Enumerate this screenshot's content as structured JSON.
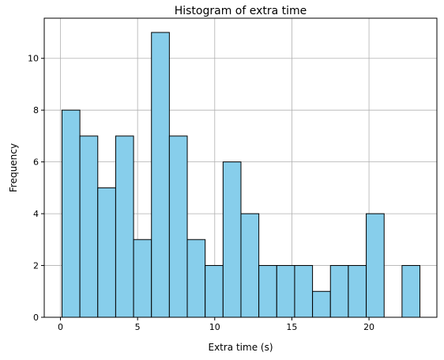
{
  "chart_data": {
    "type": "bar",
    "subtype": "histogram",
    "title": "Histogram of extra time",
    "xlabel": "Extra time (s)",
    "ylabel": "Frequency",
    "bin_start": 0.1,
    "bin_width": 1.16,
    "values": [
      8,
      7,
      5,
      7,
      3,
      11,
      7,
      3,
      2,
      6,
      4,
      2,
      2,
      2,
      1,
      2,
      2,
      4,
      0,
      2
    ],
    "xlim": [
      -1.05,
      24.4
    ],
    "ylim": [
      0,
      11.55
    ],
    "xticks": [
      0,
      5,
      10,
      15,
      20
    ],
    "yticks": [
      0,
      2,
      4,
      6,
      8,
      10
    ],
    "grid": true,
    "bar_color": "#87CEEB",
    "edge_color": "#000000"
  }
}
